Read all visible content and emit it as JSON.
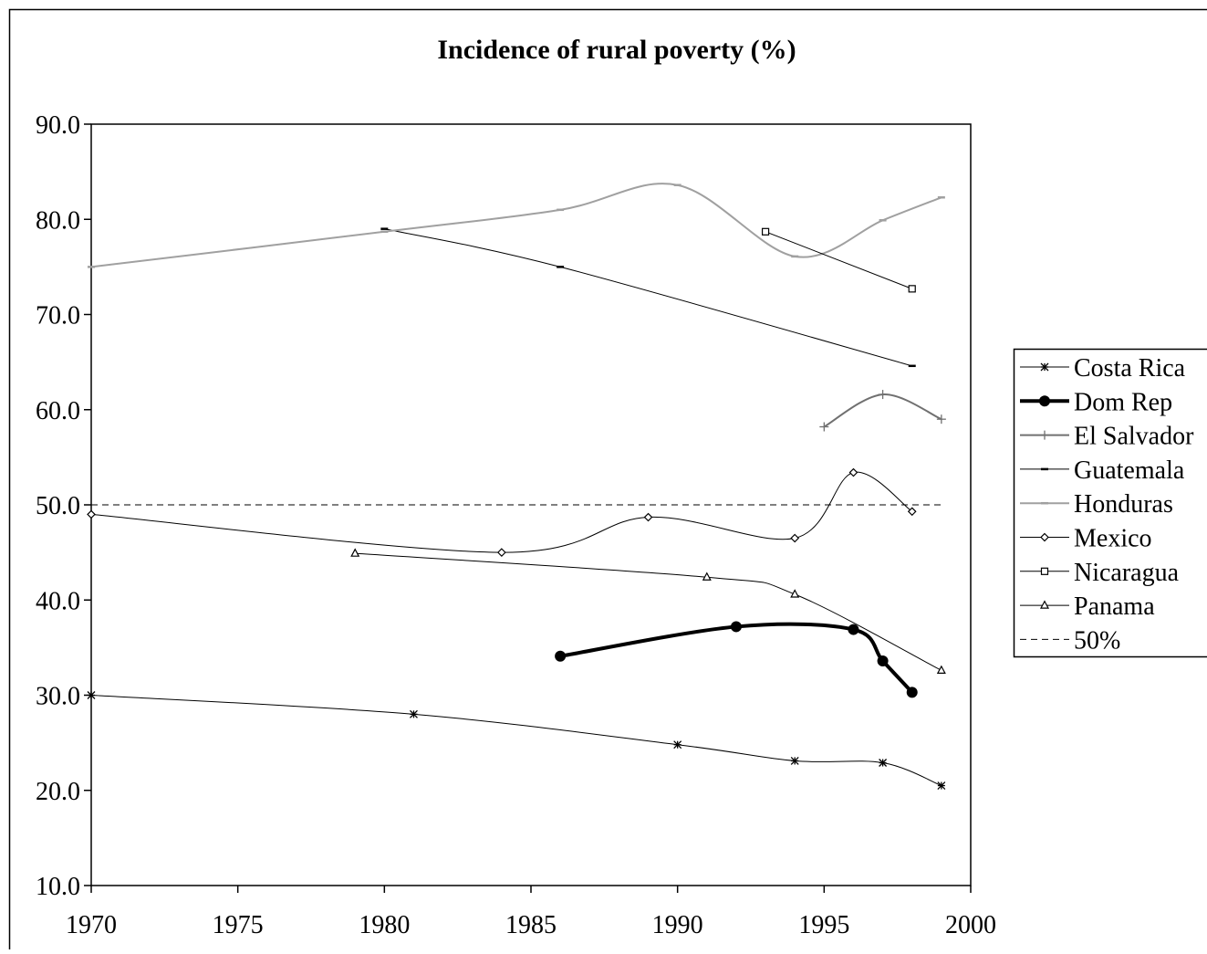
{
  "chart_data": {
    "type": "line",
    "title": "Incidence of rural poverty (%)",
    "xlabel": "",
    "ylabel": "",
    "xlim": [
      1970,
      2000
    ],
    "ylim": [
      10,
      90
    ],
    "x_ticks": [
      "1970",
      "1975",
      "1980",
      "1985",
      "1990",
      "1995",
      "2000"
    ],
    "y_ticks": [
      "10.0",
      "20.0",
      "30.0",
      "40.0",
      "50.0",
      "60.0",
      "70.0",
      "80.0",
      "90.0"
    ],
    "grid": false,
    "legend_position": "right",
    "series": [
      {
        "name": "Costa Rica",
        "marker": "asterisk",
        "color": "#000000",
        "width": 1,
        "points": [
          [
            1970,
            30.0
          ],
          [
            1981,
            28.0
          ],
          [
            1990,
            24.8
          ],
          [
            1994,
            23.1
          ],
          [
            1997,
            22.9
          ],
          [
            1999,
            20.5
          ]
        ]
      },
      {
        "name": "Dom Rep",
        "marker": "filled-circle",
        "color": "#000000",
        "width": 4,
        "points": [
          [
            1986,
            34.1
          ],
          [
            1992,
            37.2
          ],
          [
            1996,
            36.9
          ],
          [
            1997,
            33.6
          ],
          [
            1998,
            30.3
          ]
        ]
      },
      {
        "name": "El Salvador",
        "marker": "plus",
        "color": "#707070",
        "width": 2,
        "points": [
          [
            1995,
            58.2
          ],
          [
            1997,
            61.6
          ],
          [
            1999,
            59.0
          ]
        ]
      },
      {
        "name": "Guatemala",
        "marker": "dash",
        "color": "#000000",
        "width": 1,
        "points": [
          [
            1980,
            79.0
          ],
          [
            1986,
            75.0
          ],
          [
            1998,
            64.6
          ]
        ]
      },
      {
        "name": "Honduras",
        "marker": "dash",
        "color": "#a0a0a0",
        "width": 2,
        "points": [
          [
            1970,
            75.0
          ],
          [
            1980,
            78.7
          ],
          [
            1986,
            81.0
          ],
          [
            1990,
            83.6
          ],
          [
            1994,
            76.1
          ],
          [
            1997,
            79.9
          ],
          [
            1999,
            82.3
          ]
        ]
      },
      {
        "name": "Mexico",
        "marker": "diamond",
        "color": "#000000",
        "width": 1,
        "points": [
          [
            1970,
            49.0
          ],
          [
            1984,
            45.0
          ],
          [
            1989,
            48.7
          ],
          [
            1994,
            46.5
          ],
          [
            1996,
            53.4
          ],
          [
            1998,
            49.3
          ]
        ]
      },
      {
        "name": "Nicaragua",
        "marker": "square",
        "color": "#000000",
        "width": 1,
        "points": [
          [
            1993,
            78.7
          ],
          [
            1998,
            72.7
          ]
        ]
      },
      {
        "name": "Panama",
        "marker": "triangle",
        "color": "#000000",
        "width": 1,
        "points": [
          [
            1979,
            44.9
          ],
          [
            1991,
            42.4
          ],
          [
            1994,
            40.6
          ],
          [
            1999,
            32.6
          ]
        ]
      },
      {
        "name": "50%",
        "marker": "none",
        "color": "#000000",
        "width": 1,
        "dashed": true,
        "points": [
          [
            1970,
            50.0
          ],
          [
            1999,
            50.0
          ]
        ]
      }
    ]
  }
}
